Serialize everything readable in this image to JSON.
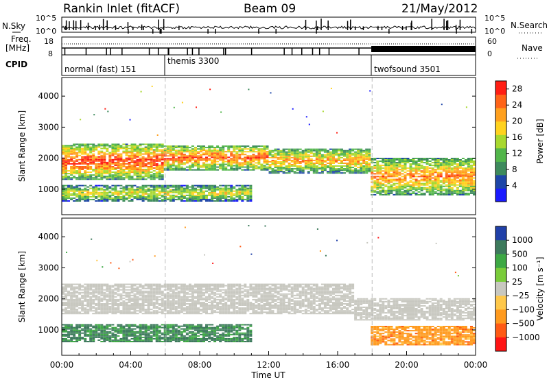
{
  "header": {
    "station": "Rankin Inlet (fitACF)",
    "beam": "Beam 09",
    "date": "21/May/2012"
  },
  "panels": {
    "nsky_label": "N.Sky",
    "nsky_ticks": [
      "10^5",
      "10^0"
    ],
    "nsearch_label": "N.Search",
    "nsearch_ticks": [
      "10^5",
      "10^0"
    ],
    "freq_label_1": "Freq.",
    "freq_label_2": "[MHz]",
    "freq_ticks": [
      "18",
      "8"
    ],
    "nave_label": "Nave",
    "nave_ticks": [
      "60",
      "0"
    ],
    "cpid_label": "CPID",
    "modes": [
      {
        "name": "normal (fast) 151",
        "start_h": 0
      },
      {
        "name": "themis 3300",
        "start_h": 6
      },
      {
        "name": "twofsound 3501",
        "start_h": 18
      }
    ]
  },
  "colors": {
    "power_scale": [
      "#1a1aff",
      "#1e46a8",
      "#3d8a5c",
      "#52b64a",
      "#a8d82e",
      "#ffd21e",
      "#ffa01e",
      "#ff6418",
      "#ff1e14"
    ],
    "velocity_scale": [
      "#ff1414",
      "#ff5a14",
      "#ff9a1e",
      "#ffc84a",
      "#c8c8c0",
      "#7acc3a",
      "#3da844",
      "#3d7a5c",
      "#2040a8"
    ]
  },
  "chart_data": [
    {
      "type": "heatmap",
      "title": "",
      "quantity": "Power",
      "xlabel": "",
      "ylabel": "Slant Range [km]",
      "xlim": [
        0,
        24
      ],
      "ylim": [
        180,
        4600
      ],
      "yticks": [
        "1000",
        "2000",
        "3000",
        "4000"
      ],
      "colorbar_label": "Power [dB]",
      "colorbar_ticks": [
        "4",
        "8",
        "12",
        "16",
        "20",
        "24",
        "28"
      ],
      "colorbar_range": [
        0,
        30
      ],
      "echo_bands": [
        {
          "t0": 0,
          "t1": 6,
          "r_lo": 1300,
          "r_hi": 2450,
          "peak": 28
        },
        {
          "t0": 6,
          "t1": 12,
          "r_lo": 1600,
          "r_hi": 2400,
          "peak": 26
        },
        {
          "t0": 12,
          "t1": 18,
          "r_lo": 1500,
          "r_hi": 2300,
          "peak": 22
        },
        {
          "t0": 18,
          "t1": 24,
          "r_lo": 800,
          "r_hi": 2000,
          "peak": 24
        },
        {
          "t0": 0,
          "t1": 11,
          "r_lo": 600,
          "r_hi": 1100,
          "peak": 18
        }
      ]
    },
    {
      "type": "heatmap",
      "title": "",
      "quantity": "Velocity",
      "xlabel": "Time UT",
      "ylabel": "Slant Range [km]",
      "xlim": [
        0,
        24
      ],
      "ylim": [
        180,
        4600
      ],
      "xticks": [
        "00:00",
        "04:00",
        "08:00",
        "12:00",
        "16:00",
        "20:00",
        "00:00"
      ],
      "yticks": [
        "1000",
        "2000",
        "3000",
        "4000"
      ],
      "colorbar_label": "Velocity [m s⁻¹]",
      "colorbar_ticks": [
        "1000",
        "500",
        "100",
        "25",
        "−25",
        "−100",
        "−500",
        "−1000"
      ],
      "echo_bands": [
        {
          "t0": 0,
          "t1": 17,
          "r_lo": 1500,
          "r_hi": 2450,
          "velocity": 0
        },
        {
          "t0": 17,
          "t1": 24,
          "r_lo": 1300,
          "r_hi": 2000,
          "velocity": 0
        },
        {
          "t0": 0,
          "t1": 11,
          "r_lo": 600,
          "r_hi": 1150,
          "velocity": 600
        },
        {
          "t0": 18,
          "t1": 24,
          "r_lo": 500,
          "r_hi": 1100,
          "velocity": -300
        }
      ]
    }
  ]
}
